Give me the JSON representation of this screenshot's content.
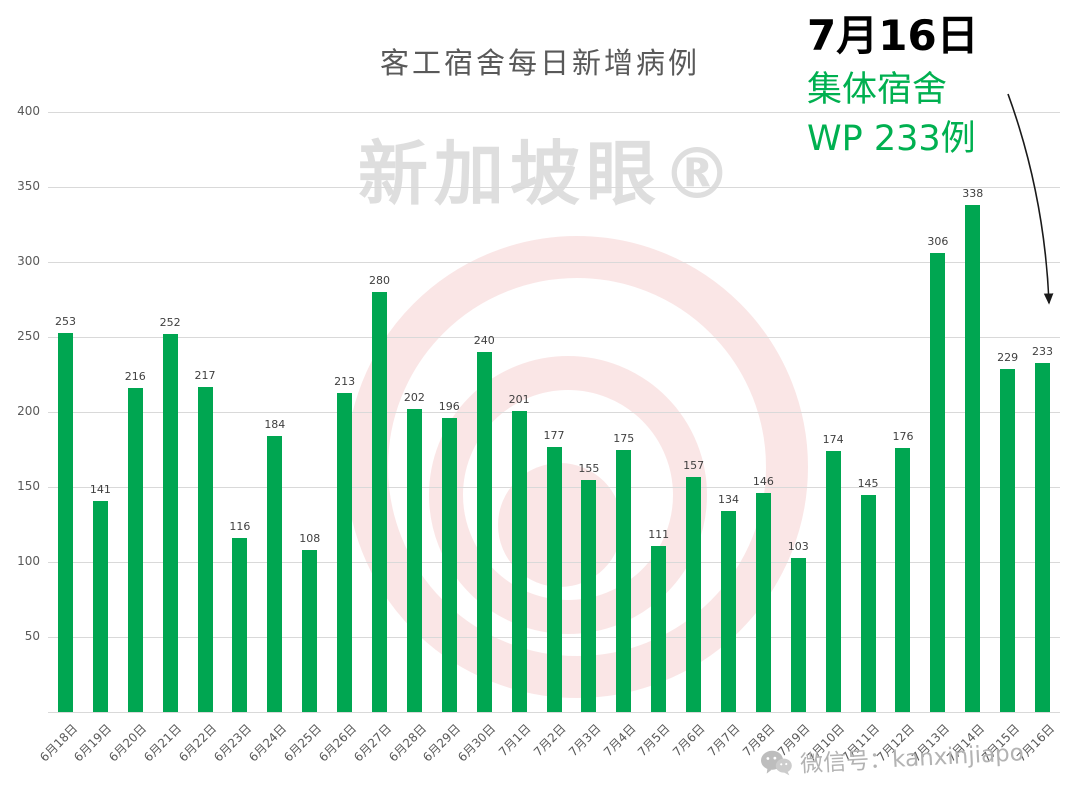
{
  "title": "客工宿舍每日新增病例",
  "annotation": {
    "date": "7月16日",
    "line2": "集体宿舍",
    "line3": "WP 233例"
  },
  "watermarks": {
    "center": "新加坡眼®",
    "bottom": "微信号：kanxinjiapo"
  },
  "colors": {
    "bar": "#00a651",
    "annotation_green": "#00b050",
    "annotation_black": "#000000",
    "title_gray": "#595959",
    "value_label_gray": "#404040",
    "grid_gray": "#d9d9d9",
    "watermark_gray": "#d6d6d6",
    "watermark_pink": "#e06666"
  },
  "chart_data": {
    "type": "bar",
    "title": "客工宿舍每日新增病例",
    "xlabel": "",
    "ylabel": "",
    "ylim": [
      0,
      400
    ],
    "yticks": [
      50,
      100,
      150,
      200,
      250,
      300,
      350,
      400
    ],
    "grid": true,
    "legend": false,
    "bar_color": "#00a651",
    "categories": [
      "6月18日",
      "6月19日",
      "6月20日",
      "6月21日",
      "6月22日",
      "6月23日",
      "6月24日",
      "6月25日",
      "6月26日",
      "6月27日",
      "6月28日",
      "6月29日",
      "6月30日",
      "7月1日",
      "7月2日",
      "7月3日",
      "7月4日",
      "7月5日",
      "7月6日",
      "7月7日",
      "7月8日",
      "7月9日",
      "7月10日",
      "7月11日",
      "7月12日",
      "7月13日",
      "7月14日",
      "7月15日",
      "7月16日"
    ],
    "values": [
      253,
      141,
      216,
      252,
      217,
      116,
      184,
      108,
      213,
      280,
      202,
      196,
      240,
      201,
      177,
      155,
      175,
      111,
      157,
      134,
      146,
      103,
      174,
      145,
      176,
      306,
      338,
      229,
      233
    ]
  }
}
